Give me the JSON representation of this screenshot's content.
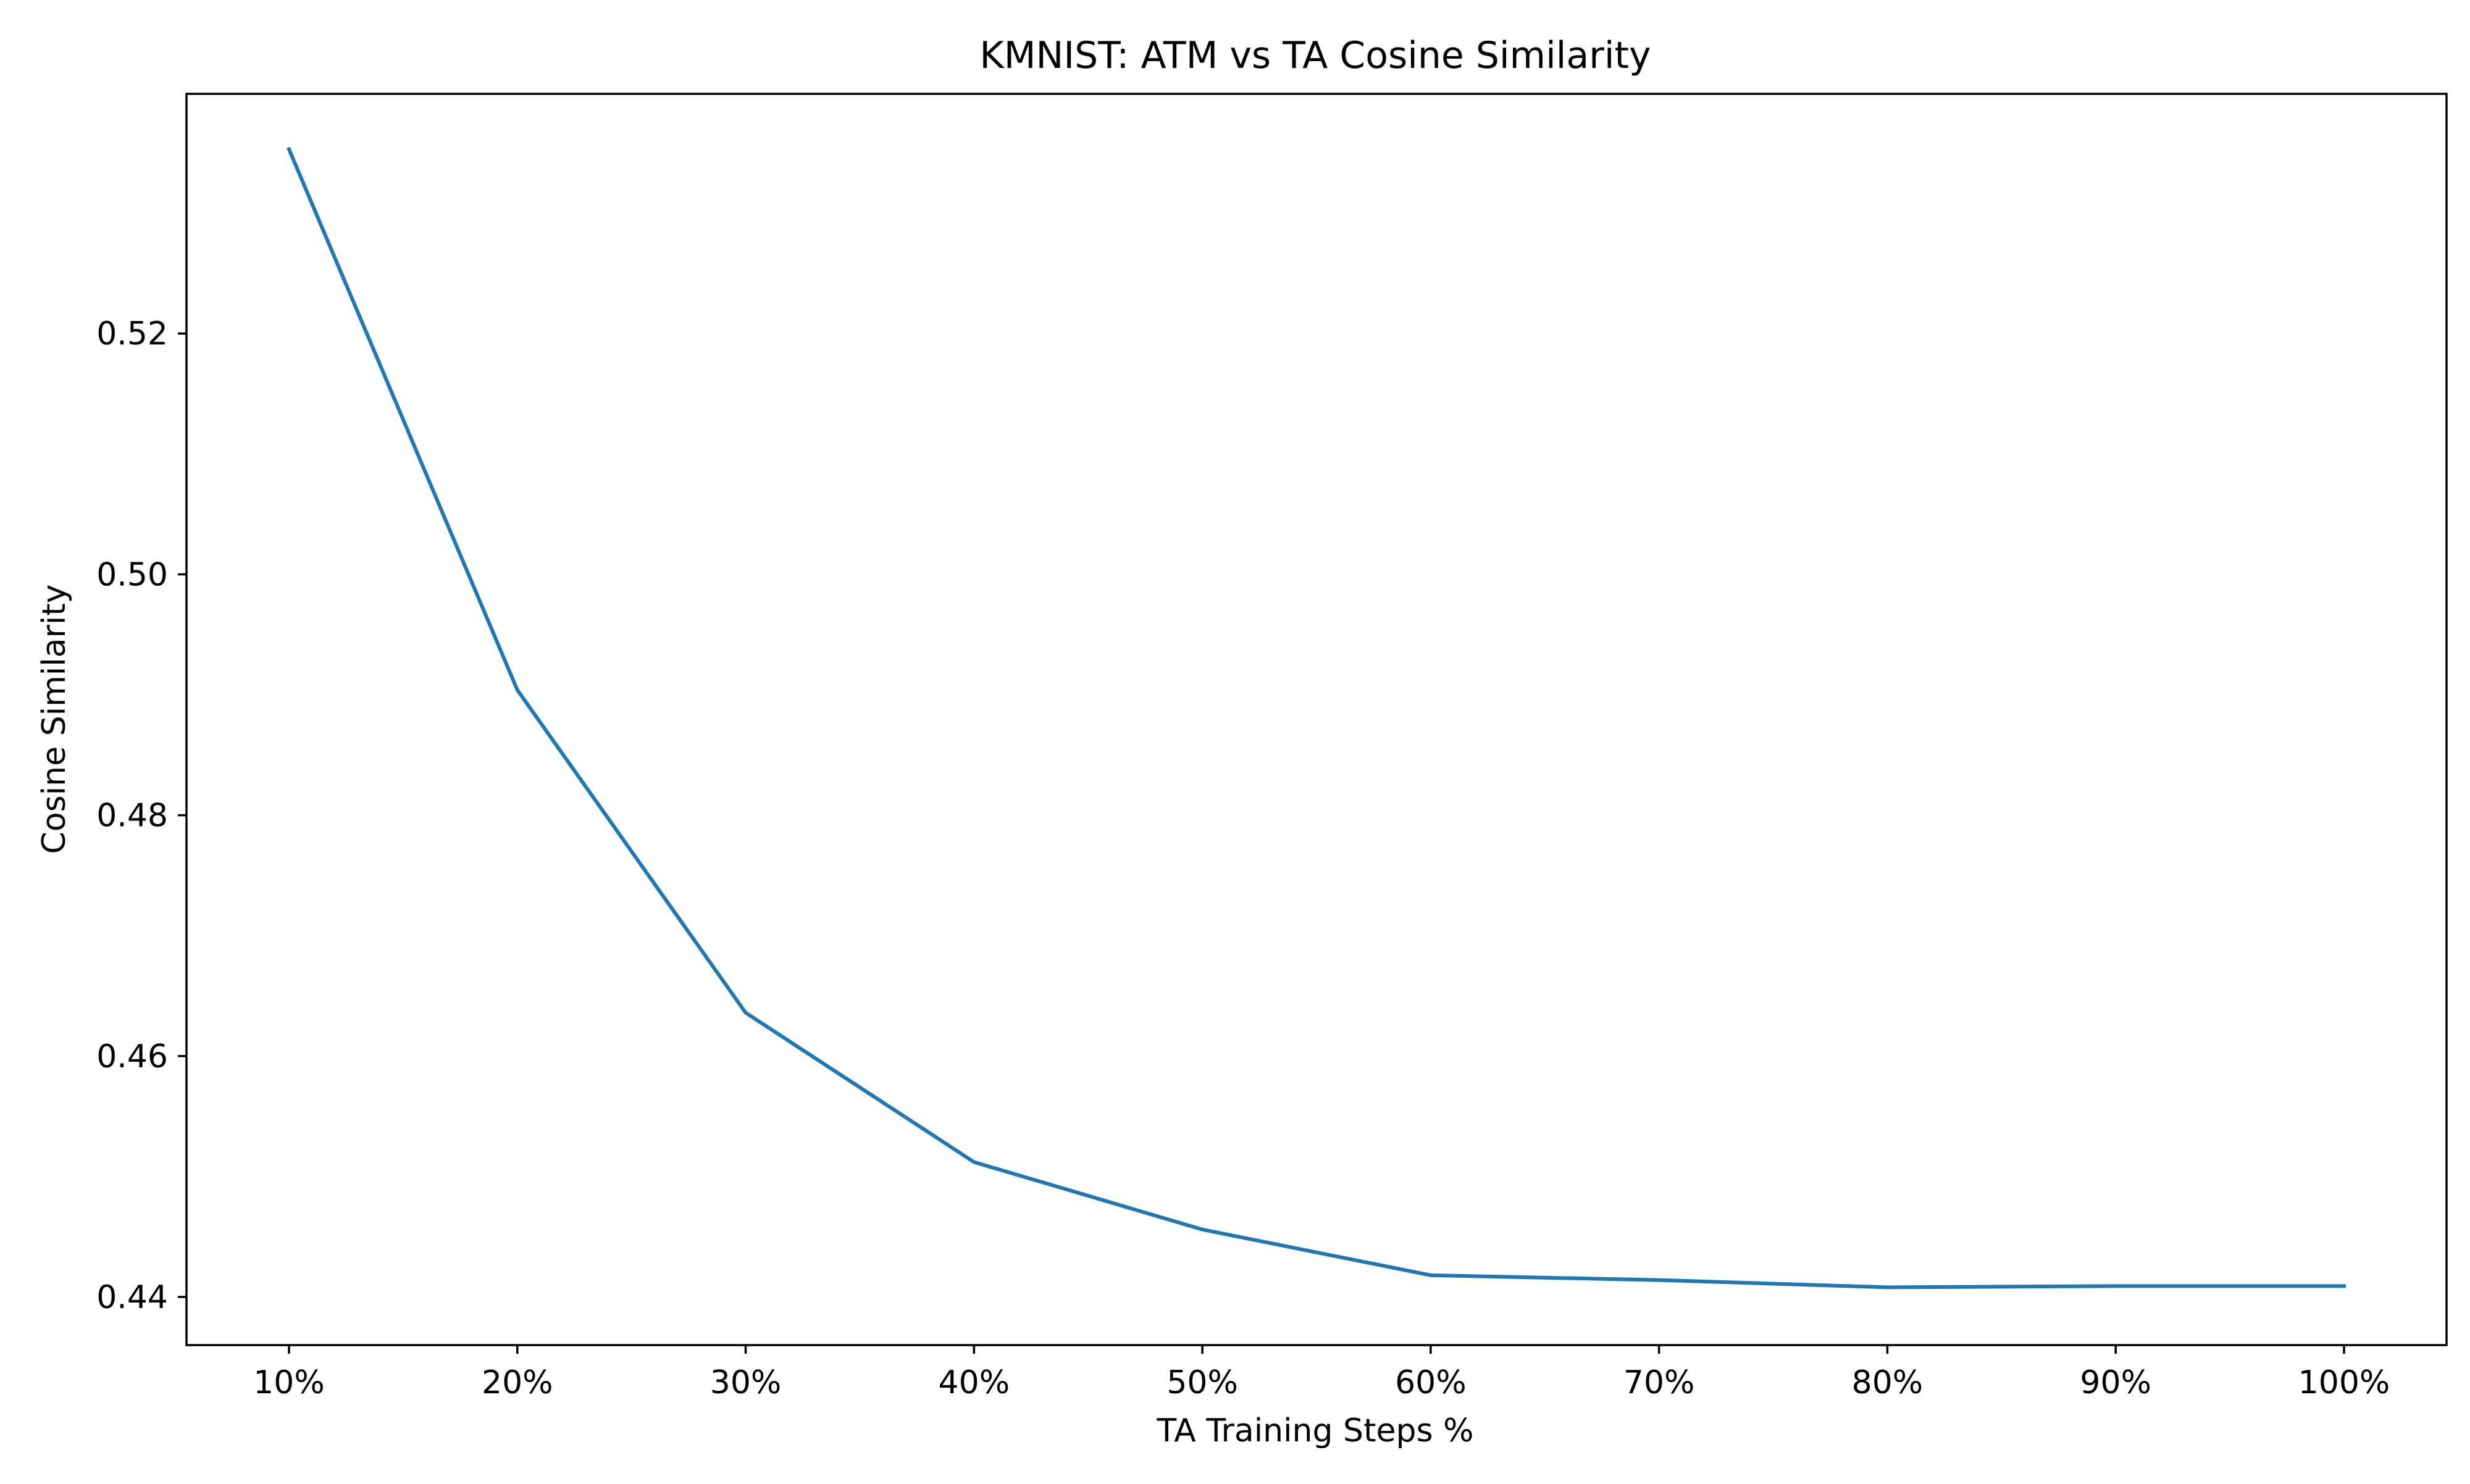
{
  "chart_data": {
    "type": "line",
    "title": "KMNIST: ATM vs TA Cosine Similarity",
    "xlabel": "TA Training Steps %",
    "ylabel": "Cosine Similarity",
    "categories": [
      "10%",
      "20%",
      "30%",
      "40%",
      "50%",
      "60%",
      "70%",
      "80%",
      "90%",
      "100%"
    ],
    "series": [
      {
        "values": [
          0.5353,
          0.4904,
          0.4636,
          0.4512,
          0.4456,
          0.4418,
          0.4414,
          0.4408,
          0.4409,
          0.4409
        ],
        "color": "#1f77b4"
      }
    ],
    "ylim": [
      0.436,
      0.5399
    ],
    "yticks": [
      0.44,
      0.46,
      0.48,
      0.5,
      0.52
    ],
    "ytick_labels": [
      "0.44",
      "0.46",
      "0.48",
      "0.50",
      "0.52"
    ],
    "grid": false,
    "legend": false
  }
}
